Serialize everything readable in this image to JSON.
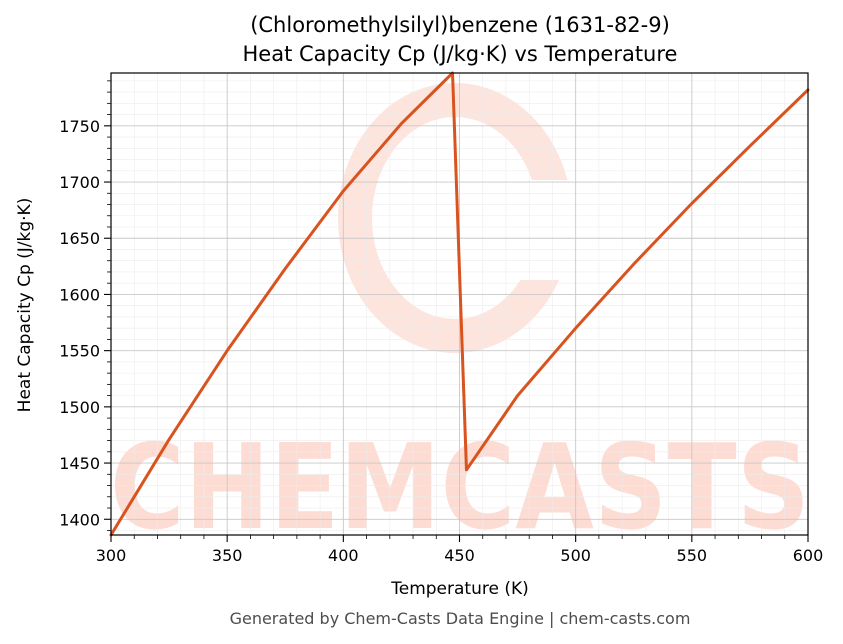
{
  "chart_data": {
    "type": "line",
    "title": "(Chloromethylsilyl)benzene (1631-82-9)",
    "subtitle": "Heat Capacity Cp (J/kg·K) vs Temperature",
    "xlabel": "Temperature (K)",
    "ylabel": "Heat Capacity Cp (J/kg·K)",
    "xlim": [
      300,
      600
    ],
    "ylim": [
      1386,
      1797
    ],
    "x_ticks": [
      300,
      350,
      400,
      450,
      500,
      550,
      600
    ],
    "y_ticks": [
      1400,
      1450,
      1500,
      1550,
      1600,
      1650,
      1700,
      1750
    ],
    "grid": true,
    "legend": "none",
    "series": [
      {
        "color": "#d9531e",
        "x": [
          300,
          325,
          350,
          375,
          400,
          425,
          447,
          453,
          475,
          500,
          525,
          550,
          575,
          600
        ],
        "y": [
          1386,
          1471,
          1550,
          1623,
          1692,
          1752,
          1797,
          1444,
          1510,
          1570,
          1627,
          1681,
          1732,
          1782
        ]
      }
    ]
  },
  "footer": "Generated by Chem-Casts Data Engine | chem-casts.com",
  "watermark": "CHEMCASTS",
  "colors": {
    "line": "#d9531e",
    "watermark": "#fddcd4",
    "grid_major": "#c8c8c8",
    "grid_minor": "#ececec"
  }
}
